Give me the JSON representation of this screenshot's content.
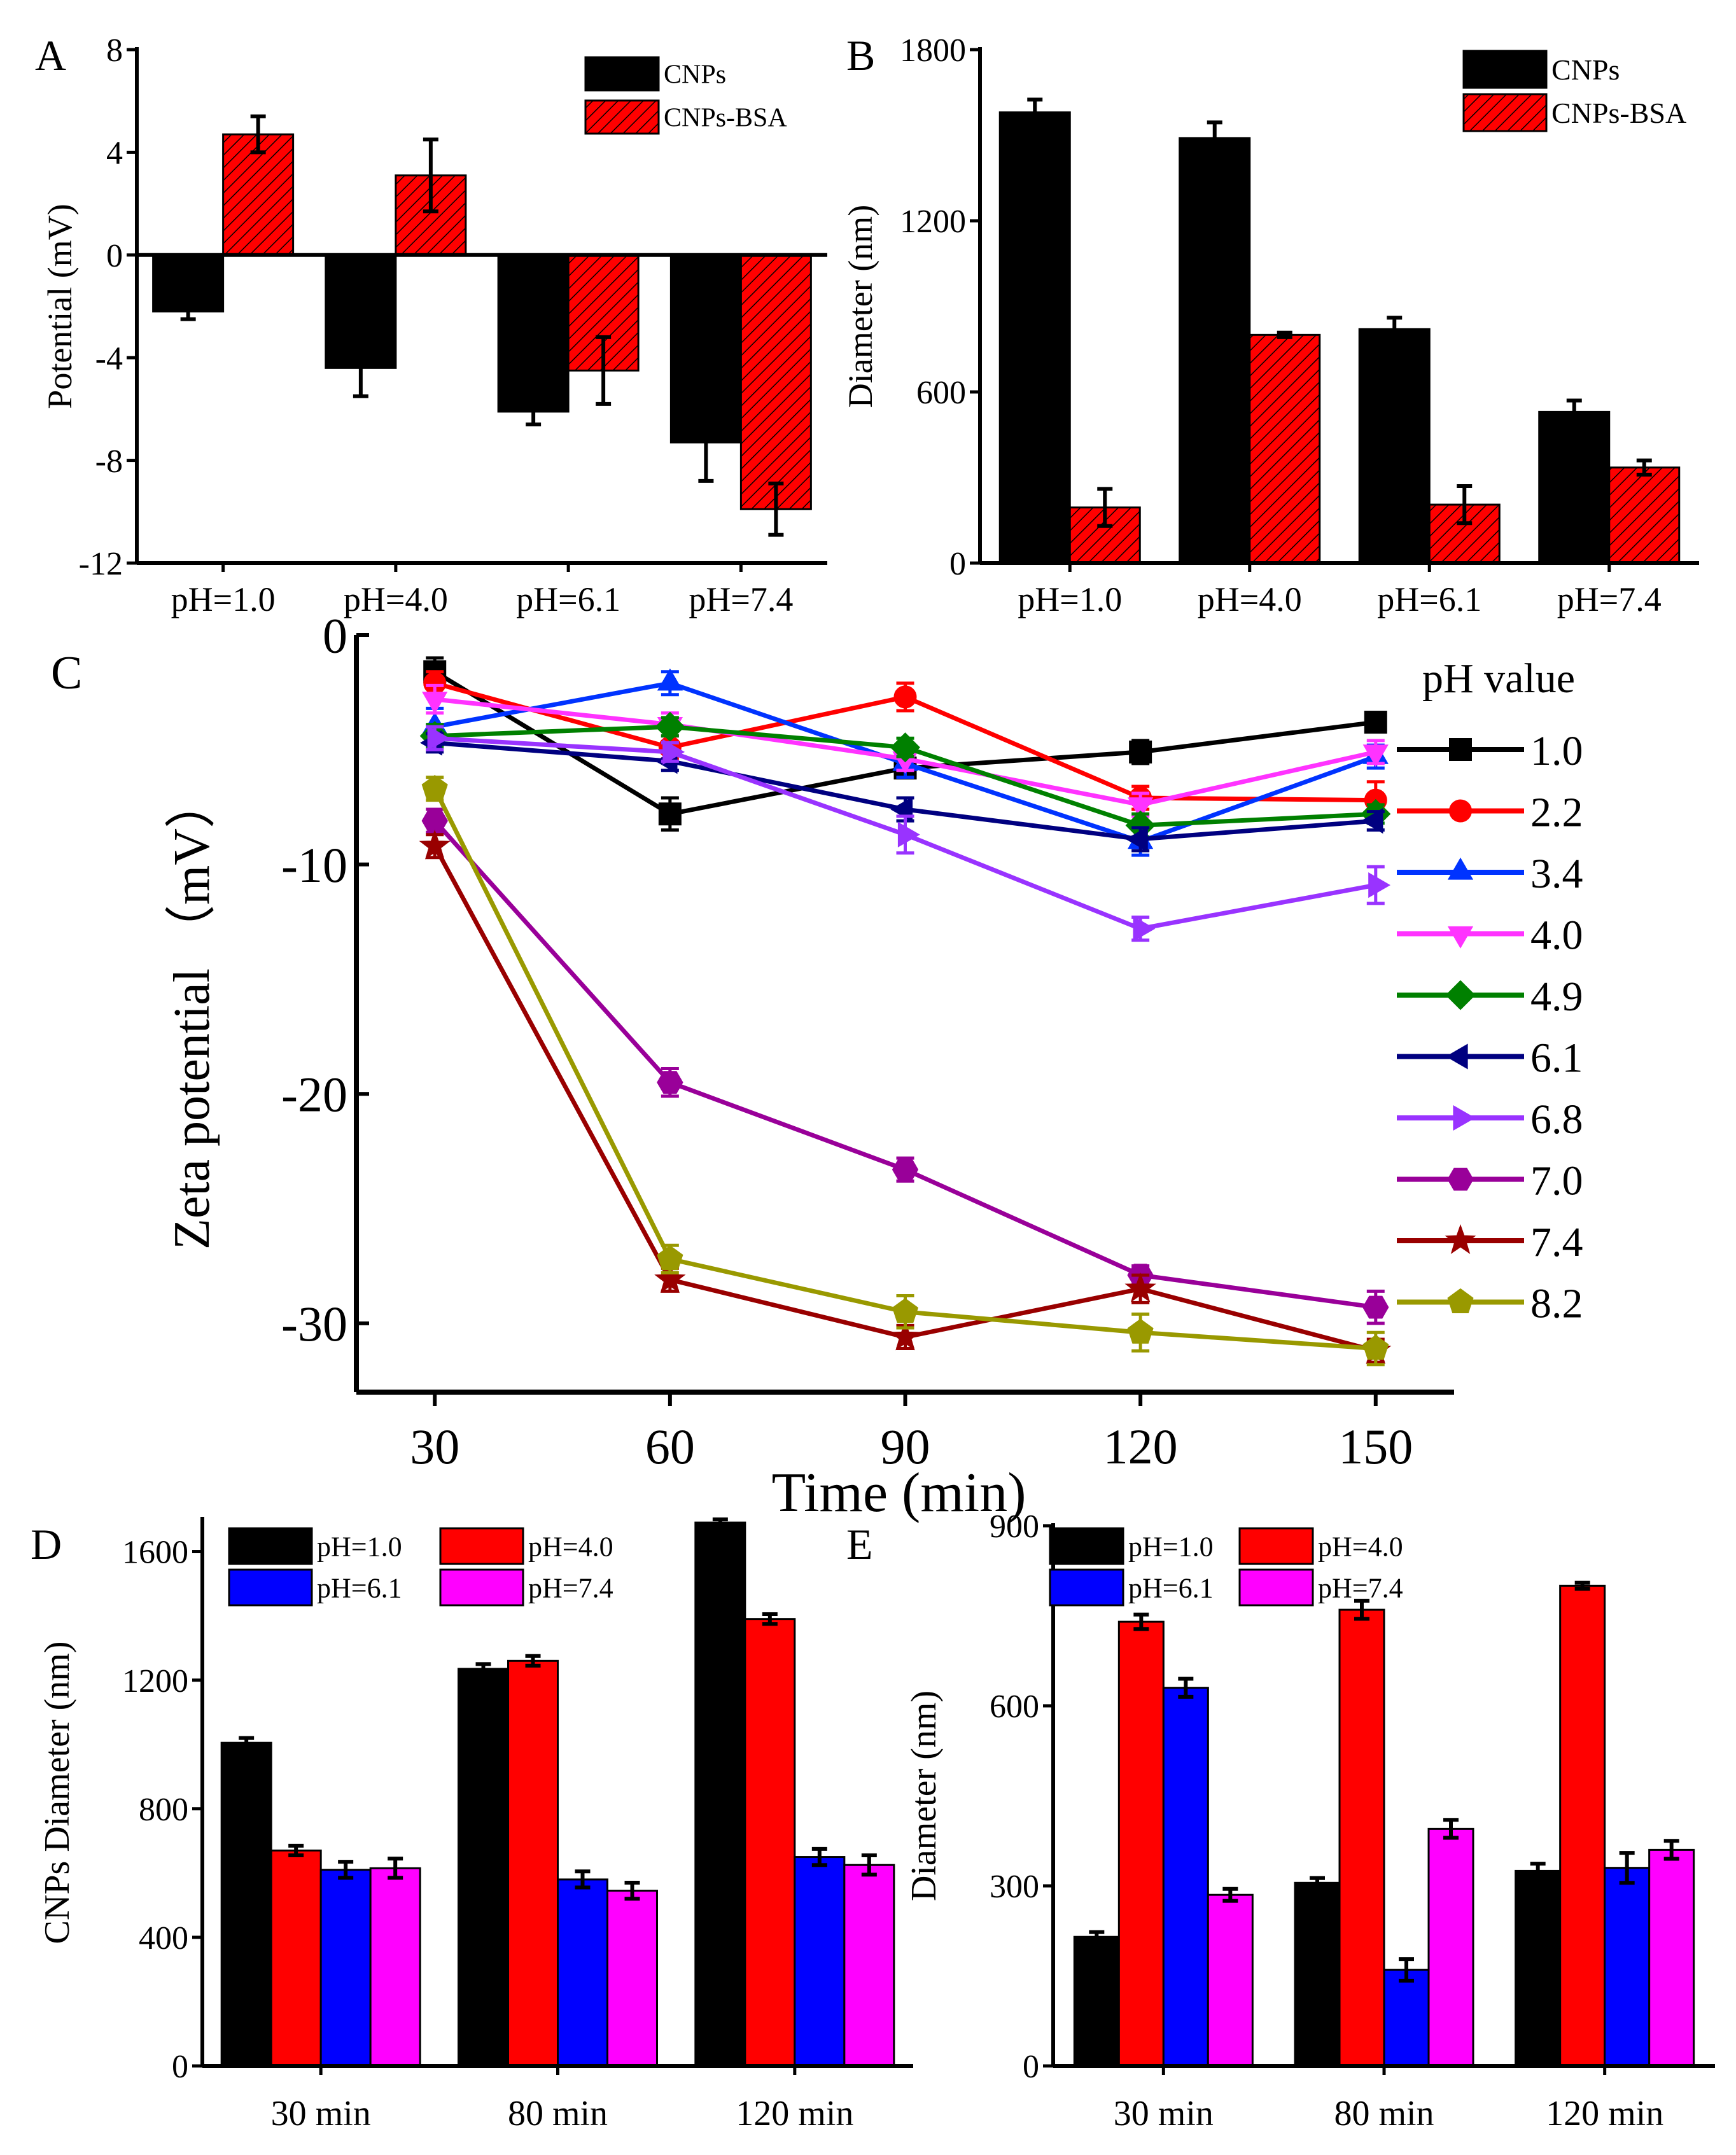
{
  "chart_data": [
    {
      "panel": "A",
      "type": "bar",
      "title": "",
      "panel_label": "A",
      "xlabel": "",
      "ylabel": "Potential (mV)",
      "ylim": [
        -12,
        8
      ],
      "yticks": [
        -12,
        -8,
        -4,
        0,
        4,
        8
      ],
      "categories": [
        "pH=1.0",
        "pH=4.0",
        "pH=6.1",
        "pH=7.4"
      ],
      "series": [
        {
          "name": "CNPs",
          "color": "#000000",
          "hatch": false,
          "values": [
            -2.2,
            -4.4,
            -6.1,
            -7.3
          ],
          "errors": [
            0.3,
            1.1,
            0.5,
            1.5
          ]
        },
        {
          "name": "CNPs-BSA",
          "color": "#ff0000",
          "hatch": true,
          "values": [
            4.7,
            3.1,
            -4.5,
            -9.9
          ],
          "errors": [
            0.7,
            1.4,
            1.3,
            1.0
          ]
        }
      ],
      "legend": "top-right",
      "grid": false
    },
    {
      "panel": "B",
      "type": "bar",
      "title": "",
      "panel_label": "B",
      "xlabel": "",
      "ylabel": "Diameter (nm)",
      "ylim": [
        0,
        1800
      ],
      "yticks": [
        0,
        600,
        1200,
        1800
      ],
      "categories": [
        "pH=1.0",
        "pH=4.0",
        "pH=6.1",
        "pH=7.4"
      ],
      "series": [
        {
          "name": "CNPs",
          "color": "#000000",
          "hatch": false,
          "values": [
            1580,
            1490,
            820,
            530
          ],
          "errors": [
            45,
            55,
            40,
            40
          ]
        },
        {
          "name": "CNPs-BSA",
          "color": "#ff0000",
          "hatch": true,
          "values": [
            195,
            800,
            205,
            335
          ],
          "errors": [
            65,
            8,
            65,
            25
          ]
        }
      ],
      "legend": "top-right",
      "grid": false
    },
    {
      "panel": "C",
      "type": "line",
      "title": "",
      "panel_label": "C",
      "xlabel": "Time (min)",
      "ylabel": "Zeta potential （mV）",
      "xlim": [
        20,
        160
      ],
      "ylim": [
        -33,
        0
      ],
      "xticks": [
        30,
        60,
        90,
        120,
        150
      ],
      "yticks": [
        -30,
        -20,
        -10,
        0
      ],
      "legend_title": "pH value",
      "x": [
        30,
        60,
        90,
        120,
        150
      ],
      "series": [
        {
          "name": "1.0",
          "color": "#000000",
          "marker": "square",
          "values": [
            -1.6,
            -7.8,
            -5.8,
            -5.1,
            -3.8
          ],
          "errors": [
            0.6,
            0.7,
            0.4,
            0.5,
            0.3
          ]
        },
        {
          "name": "2.2",
          "color": "#ff0000",
          "marker": "circle",
          "values": [
            -2.1,
            -4.9,
            -2.7,
            -7.1,
            -7.2
          ],
          "errors": [
            0.5,
            0.5,
            0.6,
            0.5,
            0.8
          ]
        },
        {
          "name": "3.4",
          "color": "#0033ff",
          "marker": "triangle-up",
          "values": [
            -4.0,
            -2.1,
            -5.6,
            -9.0,
            -5.3
          ],
          "errors": [
            0.8,
            0.5,
            0.6,
            0.6,
            0.5
          ]
        },
        {
          "name": "4.0",
          "color": "#ff33ff",
          "marker": "triangle-down",
          "values": [
            -2.8,
            -3.9,
            -5.4,
            -7.4,
            -5.1
          ],
          "errors": [
            0.6,
            0.5,
            0.5,
            0.5,
            0.5
          ]
        },
        {
          "name": "4.9",
          "color": "#008000",
          "marker": "diamond",
          "values": [
            -4.4,
            -4.0,
            -4.9,
            -8.3,
            -7.8
          ],
          "errors": [
            0.5,
            0.4,
            0.4,
            0.5,
            0.4
          ]
        },
        {
          "name": "6.1",
          "color": "#000080",
          "marker": "triangle-left",
          "values": [
            -4.7,
            -5.5,
            -7.6,
            -8.9,
            -8.1
          ],
          "errors": [
            0.4,
            0.4,
            0.5,
            0.5,
            0.4
          ]
        },
        {
          "name": "6.8",
          "color": "#9933ff",
          "marker": "triangle-right",
          "values": [
            -4.5,
            -5.1,
            -8.7,
            -12.8,
            -10.9
          ],
          "errors": [
            0.5,
            0.4,
            0.8,
            0.5,
            0.8
          ]
        },
        {
          "name": "7.0",
          "color": "#990099",
          "marker": "hexagon",
          "values": [
            -8.1,
            -19.5,
            -23.3,
            -27.9,
            -29.3
          ],
          "errors": [
            0.5,
            0.6,
            0.5,
            0.4,
            0.7
          ]
        },
        {
          "name": "7.4",
          "color": "#990000",
          "marker": "star",
          "values": [
            -9.2,
            -28.1,
            -30.6,
            -28.5,
            -31.2
          ],
          "errors": [
            0.5,
            0.5,
            0.5,
            0.6,
            0.5
          ]
        },
        {
          "name": "8.2",
          "color": "#999900",
          "marker": "pentagon",
          "values": [
            -6.7,
            -27.2,
            -29.5,
            -30.4,
            -31.1
          ],
          "errors": [
            0.5,
            0.6,
            0.7,
            0.8,
            0.7
          ]
        }
      ],
      "legend": "right",
      "grid": false
    },
    {
      "panel": "D",
      "type": "bar",
      "title": "",
      "panel_label": "D",
      "xlabel": "",
      "ylabel": "CNPs Diameter (nm)",
      "ylim": [
        0,
        1700
      ],
      "yticks": [
        0,
        400,
        800,
        1200,
        1600
      ],
      "categories": [
        "30 min",
        "80 min",
        "120 min"
      ],
      "series": [
        {
          "name": "pH=1.0",
          "color": "#000000",
          "values": [
            1005,
            1235,
            1690
          ],
          "errors": [
            15,
            15,
            10
          ]
        },
        {
          "name": "pH=4.0",
          "color": "#ff0000",
          "values": [
            670,
            1260,
            1390
          ],
          "errors": [
            15,
            15,
            15
          ]
        },
        {
          "name": "pH=6.1",
          "color": "#0000ff",
          "values": [
            610,
            580,
            650
          ],
          "errors": [
            25,
            25,
            25
          ]
        },
        {
          "name": "pH=7.4",
          "color": "#ff00ff",
          "values": [
            615,
            545,
            625
          ],
          "errors": [
            30,
            25,
            30
          ]
        }
      ],
      "legend": "top",
      "grid": false
    },
    {
      "panel": "E",
      "type": "bar",
      "title": "",
      "panel_label": "E",
      "xlabel": "",
      "ylabel": "Diameter (nm)",
      "ylim": [
        0,
        900
      ],
      "yticks": [
        0,
        300,
        600,
        900
      ],
      "categories": [
        "30 min",
        "80 min",
        "120 min"
      ],
      "series": [
        {
          "name": "pH=1.0",
          "color": "#000000",
          "values": [
            215,
            305,
            325
          ],
          "errors": [
            8,
            8,
            12
          ]
        },
        {
          "name": "pH=4.0",
          "color": "#ff0000",
          "values": [
            740,
            760,
            800
          ],
          "errors": [
            12,
            15,
            5
          ]
        },
        {
          "name": "pH=6.1",
          "color": "#0000ff",
          "values": [
            630,
            160,
            330
          ],
          "errors": [
            15,
            18,
            25
          ]
        },
        {
          "name": "pH=7.4",
          "color": "#ff00ff",
          "values": [
            285,
            395,
            360
          ],
          "errors": [
            10,
            15,
            15
          ]
        }
      ],
      "legend": "top",
      "grid": false
    }
  ]
}
